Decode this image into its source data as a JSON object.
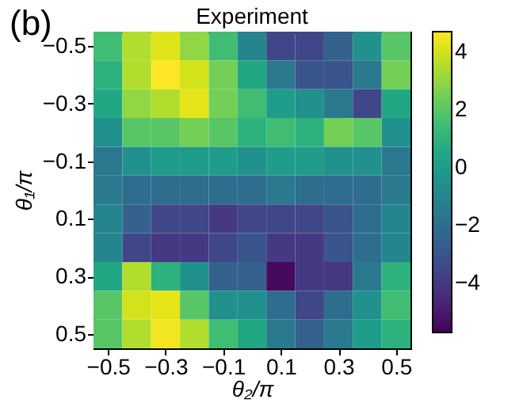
{
  "chart_data": {
    "type": "heatmap",
    "title": "Experiment",
    "xlabel": "θ₂/π",
    "ylabel": "θ₁/π",
    "annotations": [
      "(b)"
    ],
    "categories": [
      "−0.5",
      null,
      "−0.3",
      null,
      "−0.1",
      null,
      "0.1",
      null,
      "0.3",
      null,
      "0.5"
    ],
    "y_categories": [
      "−0.5",
      null,
      "−0.3",
      null,
      "−0.1",
      null,
      "0.1",
      null,
      "0.3",
      null,
      "0.5"
    ],
    "cells": [
      [
        1.5,
        3.5,
        4.2,
        3,
        1.5,
        -1,
        -3.5,
        -3.5,
        -2.5,
        -0.5,
        2
      ],
      [
        1,
        3.5,
        4.7,
        4,
        2.5,
        0.5,
        -1.5,
        -3,
        -3,
        -1.5,
        2.5
      ],
      [
        0.5,
        3,
        3.5,
        4.3,
        2.5,
        1.5,
        0,
        -0.5,
        -1.5,
        -3.5,
        0.5
      ],
      [
        -0.5,
        2,
        2,
        2.5,
        2,
        1,
        1.5,
        1,
        2.5,
        2,
        -0.5
      ],
      [
        -1.5,
        -0.5,
        0,
        0,
        0,
        -0.5,
        0,
        0,
        -0.5,
        -0.5,
        -1.5
      ],
      [
        -1.5,
        -2,
        -2,
        -2,
        -2,
        -2,
        -1.5,
        -2,
        -2,
        -2,
        -1.5
      ],
      [
        -1,
        -2.5,
        -3.5,
        -3.5,
        -4,
        -3.5,
        -3.5,
        -3.5,
        -3,
        -2,
        -1
      ],
      [
        -1,
        -3.5,
        -4,
        -4,
        -3.5,
        -3,
        -4,
        -4,
        -3,
        -2,
        -1
      ],
      [
        0.5,
        3.5,
        1,
        -0.5,
        -2.5,
        -2.5,
        -5.5,
        -4,
        -4,
        -1.5,
        1
      ],
      [
        2,
        4,
        4.3,
        2,
        -0.5,
        -0.5,
        -2,
        -3.5,
        -2,
        -0.5,
        1.5
      ],
      [
        2,
        3.5,
        4.5,
        3.5,
        1.5,
        0.5,
        -1.5,
        -2.5,
        -1.5,
        0,
        1
      ]
    ],
    "clim": [
      -5.7,
      4.7
    ],
    "cticks": [
      -4,
      -2,
      0,
      2,
      4
    ]
  }
}
